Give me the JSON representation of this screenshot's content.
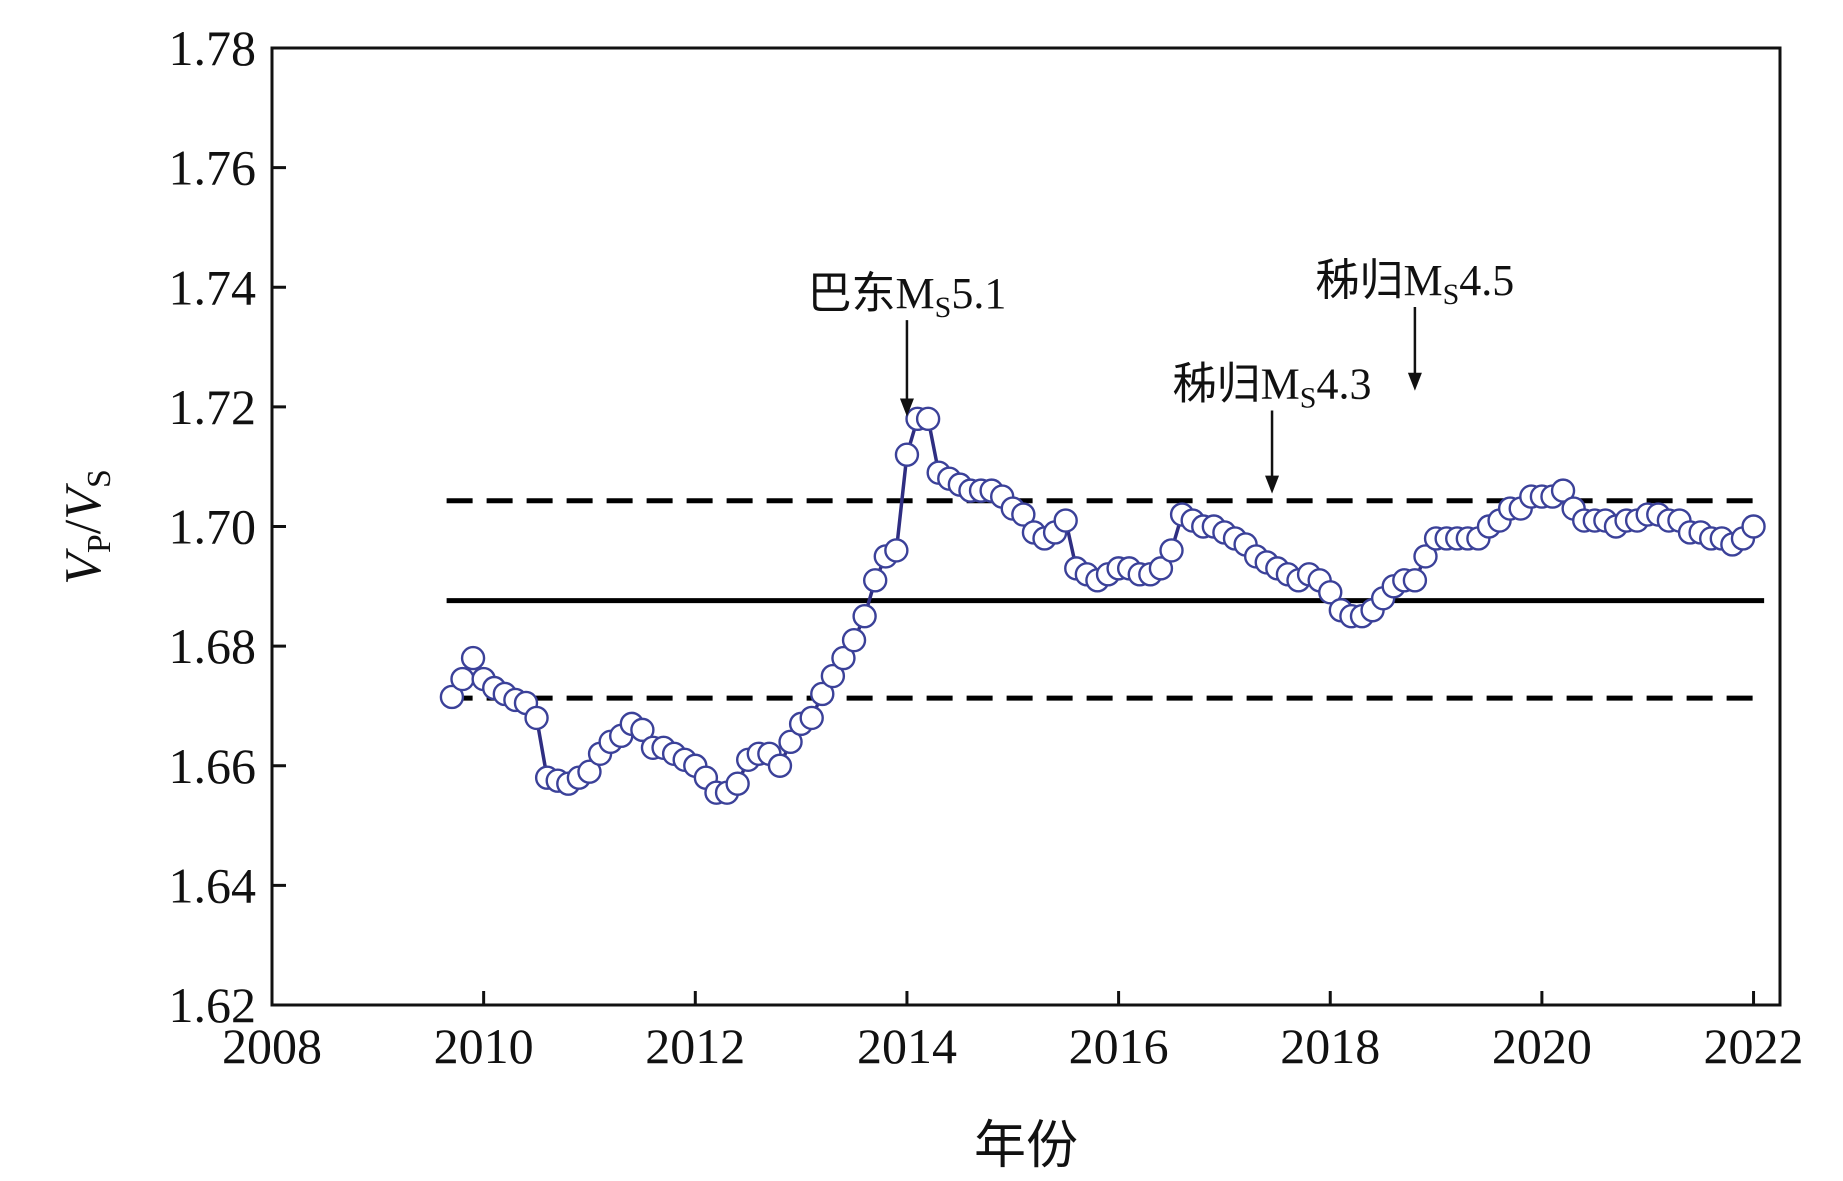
{
  "chart_data": {
    "type": "line",
    "xlabel": "年份",
    "ylabel": {
      "v1": "V",
      "s1": "P",
      "sep": "/",
      "v2": "V",
      "s2": "S"
    },
    "xlim": [
      2008,
      2022.25
    ],
    "ylim": [
      1.62,
      1.78
    ],
    "xticks": [
      2008,
      2010,
      2012,
      2014,
      2016,
      2018,
      2020,
      2022
    ],
    "yticks": [
      "1.62",
      "1.64",
      "1.66",
      "1.68",
      "1.70",
      "1.72",
      "1.74",
      "1.76",
      "1.78"
    ],
    "grid": false,
    "colors": {
      "series": "#2f2e82",
      "marker_edge": "#3b4199",
      "reference": "#000000"
    },
    "reference_lines": [
      {
        "style": "dashed",
        "y": 1.7043
      },
      {
        "style": "solid",
        "y": 1.6876
      },
      {
        "style": "dashed",
        "y": 1.6713
      }
    ],
    "annotations": [
      {
        "text": "巴东",
        "mag_prefix": "M",
        "mag_sub": "S",
        "mag_value": "5.1",
        "x": 2014.0,
        "arrow_from": 1.7345,
        "arrow_to": 1.7184
      },
      {
        "text": "秭归",
        "mag_prefix": "M",
        "mag_sub": "S",
        "mag_value": "4.3",
        "x": 2017.45,
        "arrow_from": 1.7194,
        "arrow_to": 1.7055
      },
      {
        "text": "秭归",
        "mag_prefix": "M",
        "mag_sub": "S",
        "mag_value": "4.5",
        "x": 2018.8,
        "arrow_from": 1.7367,
        "arrow_to": 1.7227
      }
    ],
    "series": [
      {
        "x": [
          2009.7,
          2009.8,
          2009.9,
          2010.0,
          2010.1,
          2010.2,
          2010.3,
          2010.4,
          2010.5,
          2010.6,
          2010.7,
          2010.8,
          2010.9,
          2011.0,
          2011.1,
          2011.2,
          2011.3,
          2011.4,
          2011.5,
          2011.6,
          2011.7,
          2011.8,
          2011.9,
          2012.0,
          2012.1,
          2012.2,
          2012.3,
          2012.4,
          2012.5,
          2012.6,
          2012.7,
          2012.8,
          2012.9,
          2013.0,
          2013.1,
          2013.2,
          2013.3,
          2013.4,
          2013.5,
          2013.6,
          2013.7,
          2013.8,
          2013.9,
          2014.0,
          2014.1,
          2014.2,
          2014.3,
          2014.4,
          2014.5,
          2014.6,
          2014.7,
          2014.8,
          2014.9,
          2015.0,
          2015.1,
          2015.2,
          2015.3,
          2015.4,
          2015.5,
          2015.6,
          2015.7,
          2015.8,
          2015.9,
          2016.0,
          2016.1,
          2016.2,
          2016.3,
          2016.4,
          2016.5,
          2016.6,
          2016.7,
          2016.8,
          2016.9,
          2017.0,
          2017.1,
          2017.2,
          2017.3,
          2017.4,
          2017.5,
          2017.6,
          2017.7,
          2017.8,
          2017.9,
          2018.0,
          2018.1,
          2018.2,
          2018.3,
          2018.4,
          2018.5,
          2018.6,
          2018.7,
          2018.8,
          2018.9,
          2019.0,
          2019.1,
          2019.2,
          2019.3,
          2019.4,
          2019.5,
          2019.6,
          2019.7,
          2019.8,
          2019.9,
          2020.0,
          2020.1,
          2020.2,
          2020.3,
          2020.4,
          2020.5,
          2020.6,
          2020.7,
          2020.8,
          2020.9,
          2021.0,
          2021.1,
          2021.2,
          2021.3,
          2021.4,
          2021.5,
          2021.6,
          2021.7,
          2021.8,
          2021.9,
          2022.0
        ],
        "y": [
          1.6715,
          1.6745,
          1.678,
          1.6745,
          1.673,
          1.672,
          1.671,
          1.6705,
          1.668,
          1.658,
          1.6575,
          1.657,
          1.658,
          1.659,
          1.662,
          1.664,
          1.665,
          1.667,
          1.666,
          1.663,
          1.663,
          1.662,
          1.661,
          1.66,
          1.658,
          1.6555,
          1.6555,
          1.657,
          1.661,
          1.662,
          1.662,
          1.66,
          1.664,
          1.667,
          1.668,
          1.672,
          1.675,
          1.678,
          1.681,
          1.685,
          1.691,
          1.695,
          1.696,
          1.712,
          1.718,
          1.718,
          1.709,
          1.708,
          1.707,
          1.706,
          1.706,
          1.706,
          1.705,
          1.703,
          1.702,
          1.699,
          1.698,
          1.699,
          1.701,
          1.693,
          1.692,
          1.691,
          1.692,
          1.693,
          1.693,
          1.692,
          1.692,
          1.693,
          1.696,
          1.702,
          1.701,
          1.7,
          1.7,
          1.699,
          1.698,
          1.697,
          1.695,
          1.694,
          1.693,
          1.692,
          1.691,
          1.692,
          1.691,
          1.689,
          1.686,
          1.685,
          1.685,
          1.686,
          1.688,
          1.69,
          1.691,
          1.691,
          1.695,
          1.698,
          1.698,
          1.698,
          1.698,
          1.698,
          1.7,
          1.701,
          1.703,
          1.703,
          1.705,
          1.705,
          1.705,
          1.706,
          1.703,
          1.701,
          1.701,
          1.701,
          1.7,
          1.701,
          1.701,
          1.702,
          1.702,
          1.701,
          1.701,
          1.699,
          1.699,
          1.698,
          1.698,
          1.697,
          1.698,
          1.7
        ]
      }
    ]
  }
}
